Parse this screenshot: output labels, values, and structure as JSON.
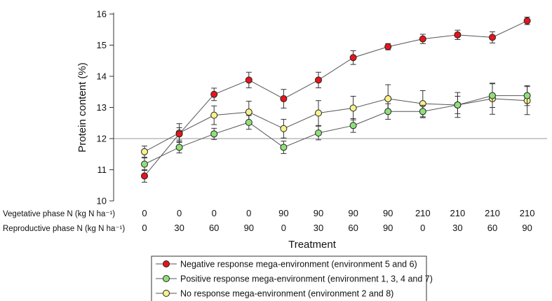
{
  "chart_data": {
    "type": "line",
    "xlabel": "Treatment",
    "ylabel": "Protein content (%)",
    "ylim": [
      10,
      16
    ],
    "yticks": [
      10,
      11,
      12,
      13,
      14,
      15,
      16
    ],
    "reference_line": 12,
    "grid": false,
    "legend_position": "bottom",
    "category_rows": [
      {
        "label": "Vegetative phase N (kg N ha⁻¹)",
        "values": [
          "0",
          "0",
          "0",
          "0",
          "90",
          "90",
          "90",
          "90",
          "210",
          "210",
          "210",
          "210"
        ]
      },
      {
        "label": "Reproductive phase N (kg N ha⁻¹)",
        "values": [
          "0",
          "30",
          "60",
          "90",
          "0",
          "30",
          "60",
          "90",
          "0",
          "30",
          "60",
          "90"
        ]
      }
    ],
    "series": [
      {
        "name": "Negative response mega-environment (environment 5 and 6)",
        "color": "#e8141c",
        "values": [
          10.8,
          12.15,
          13.42,
          13.88,
          13.28,
          13.88,
          14.6,
          14.95,
          15.2,
          15.33,
          15.25,
          15.78
        ],
        "errors": [
          0.2,
          0.2,
          0.2,
          0.25,
          0.3,
          0.25,
          0.22,
          0.1,
          0.15,
          0.15,
          0.18,
          0.12
        ]
      },
      {
        "name": "Positive response mega-environment (environment 1, 3, 4 and 7)",
        "color": "#8ee07a",
        "values": [
          11.18,
          11.72,
          12.15,
          12.52,
          11.72,
          12.18,
          12.42,
          12.87,
          12.87,
          13.08,
          13.38,
          13.38
        ],
        "errors": [
          0.2,
          0.18,
          0.18,
          0.22,
          0.2,
          0.22,
          0.22,
          0.25,
          0.2,
          0.28,
          0.38,
          0.32
        ]
      },
      {
        "name": "No response mega-environment (environment 2 and 8)",
        "color": "#f7f28a",
        "values": [
          11.58,
          12.18,
          12.75,
          12.85,
          12.32,
          12.82,
          12.98,
          13.28,
          13.12,
          13.08,
          13.28,
          13.22
        ],
        "errors": [
          0.18,
          0.3,
          0.3,
          0.35,
          0.3,
          0.4,
          0.38,
          0.45,
          0.42,
          0.4,
          0.5,
          0.45
        ]
      }
    ]
  }
}
